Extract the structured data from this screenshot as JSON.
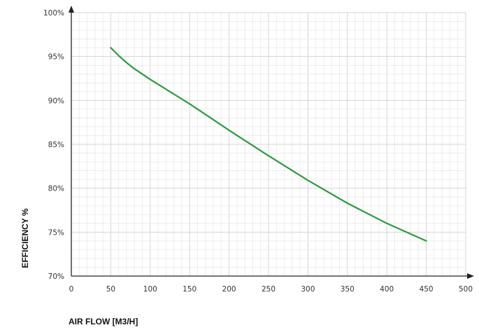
{
  "chart_data": {
    "type": "line",
    "xlabel": "AIR FLOW [M3/H]",
    "ylabel": "EFFICIENCY %",
    "xlim": [
      0,
      500
    ],
    "ylim": [
      70,
      100
    ],
    "x_ticks": [
      "0",
      "50",
      "100",
      "150",
      "200",
      "250",
      "300",
      "350",
      "400",
      "450",
      "500"
    ],
    "y_ticks": [
      "70%",
      "75%",
      "80%",
      "85%",
      "90%",
      "95%",
      "100%"
    ],
    "grid": true,
    "series": [
      {
        "color": "#2e9a3e",
        "x": [
          50,
          60,
          70,
          80,
          90,
          100,
          125,
          150,
          175,
          200,
          250,
          300,
          350,
          400,
          450
        ],
        "y": [
          96.0,
          95.1,
          94.3,
          93.6,
          93.0,
          92.4,
          91.0,
          89.6,
          88.1,
          86.6,
          83.7,
          80.9,
          78.3,
          76.0,
          74.0
        ]
      }
    ]
  }
}
